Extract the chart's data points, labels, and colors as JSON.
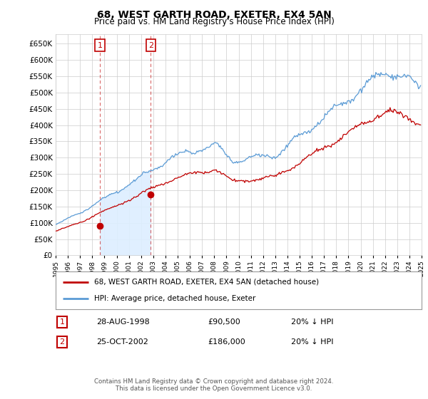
{
  "title": "68, WEST GARTH ROAD, EXETER, EX4 5AN",
  "subtitle": "Price paid vs. HM Land Registry's House Price Index (HPI)",
  "sale1_date": "28-AUG-1998",
  "sale1_price": 90500,
  "sale1_label": "1",
  "sale1_pct": "20% ↓ HPI",
  "sale1_x": 1998.622,
  "sale2_date": "25-OCT-2002",
  "sale2_price": 186000,
  "sale2_label": "2",
  "sale2_pct": "20% ↓ HPI",
  "sale2_x": 2002.803,
  "legend_line1": "68, WEST GARTH ROAD, EXETER, EX4 5AN (detached house)",
  "legend_line2": "HPI: Average price, detached house, Exeter",
  "footer": "Contains HM Land Registry data © Crown copyright and database right 2024.\nThis data is licensed under the Open Government Licence v3.0.",
  "hpi_color": "#5b9bd5",
  "price_color": "#c00000",
  "shade_color": "#ddeeff",
  "grid_color": "#cccccc",
  "bg_color": "#ffffff",
  "ylim": [
    0,
    680000
  ],
  "yticks": [
    0,
    50000,
    100000,
    150000,
    200000,
    250000,
    300000,
    350000,
    400000,
    450000,
    500000,
    550000,
    600000,
    650000
  ],
  "xstart": 1995,
  "xend": 2025
}
